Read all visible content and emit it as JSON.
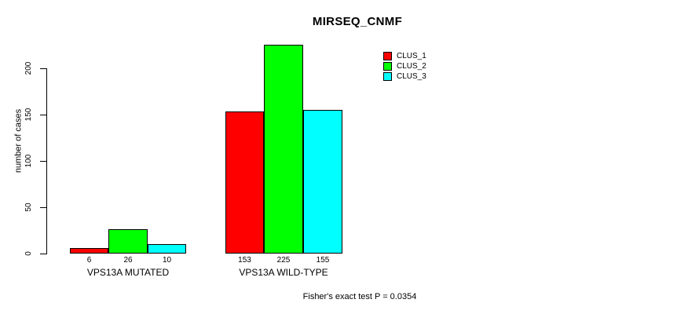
{
  "title": "MIRSEQ_CNMF",
  "y_axis_label": "number of cases",
  "footer_note": "Fisher's exact test P = 0.0354",
  "colors": {
    "background": "#FFFFFF",
    "axis": "#000000",
    "text": "#000000",
    "clus_1": "#FF0000",
    "clus_2": "#00FF00",
    "clus_3": "#00FFFF"
  },
  "legend": {
    "position": "top-right",
    "items": [
      {
        "label": "CLUS_1",
        "color": "#FF0000"
      },
      {
        "label": "CLUS_2",
        "color": "#00FF00"
      },
      {
        "label": "CLUS_3",
        "color": "#00FFFF"
      }
    ]
  },
  "chart_data": {
    "type": "bar",
    "grouped": true,
    "title": "MIRSEQ_CNMF",
    "xlabel": "",
    "ylabel": "number of cases",
    "categories": [
      "VPS13A MUTATED",
      "VPS13A WILD-TYPE"
    ],
    "series": [
      {
        "name": "CLUS_1",
        "color": "#FF0000",
        "values": [
          6,
          153
        ]
      },
      {
        "name": "CLUS_2",
        "color": "#00FF00",
        "values": [
          26,
          225
        ]
      },
      {
        "name": "CLUS_3",
        "color": "#00FFFF",
        "values": [
          10,
          155
        ]
      }
    ],
    "bar_value_labels": [
      [
        6,
        26,
        10
      ],
      [
        153,
        225,
        155
      ]
    ],
    "y_ticks": [
      0,
      50,
      100,
      150,
      200
    ],
    "ylim": [
      0,
      228
    ],
    "grid": false,
    "legend_position": "top-right",
    "annotation": "Fisher's exact test P = 0.0354"
  }
}
